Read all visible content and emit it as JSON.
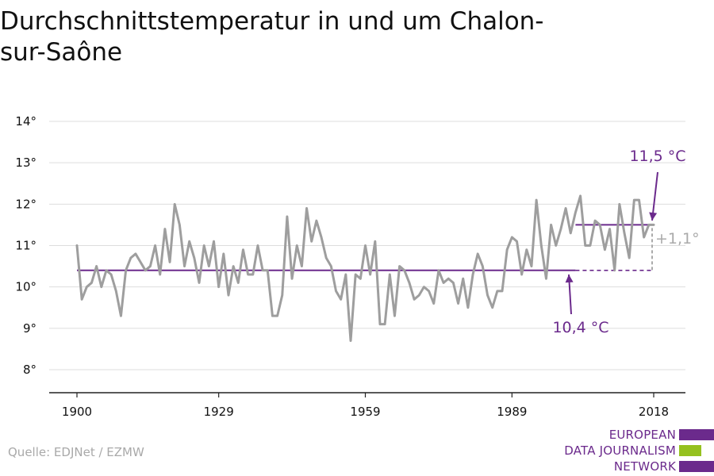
{
  "title": "Durchschnittstemperatur in und um Chalon-sur-Saône",
  "source": "Quelle: EDJNet / EZMW",
  "logo": {
    "lines": [
      "EUROPEAN",
      "DATA JOURNALISM",
      "NETWORK"
    ],
    "bar_colors": [
      "#6b2a8c",
      "#95c11f",
      "#6b2a8c"
    ]
  },
  "colors": {
    "series": "#9e9e9e",
    "accent": "#6b2a8c",
    "grid": "#dddddd",
    "axis": "#222222",
    "difference": "#aaaaaa"
  },
  "chart_data": {
    "type": "line",
    "title": "Durchschnittstemperatur in und um Chalon-sur-Saône",
    "xlabel": "",
    "ylabel": "",
    "xlim": [
      1900,
      2018
    ],
    "ylim": [
      8,
      14
    ],
    "x_ticks": [
      1900,
      1929,
      1959,
      1989,
      2018
    ],
    "y_ticks": [
      8,
      9,
      10,
      11,
      12,
      13,
      14
    ],
    "y_tick_labels": [
      "8°",
      "9°",
      "10°",
      "11°",
      "12°",
      "13°",
      "14°"
    ],
    "grid": true,
    "series": [
      {
        "x": [
          1900,
          1901,
          1902,
          1903,
          1904,
          1905,
          1906,
          1907,
          1908,
          1909,
          1910,
          1911,
          1912,
          1913,
          1914,
          1915,
          1916,
          1917,
          1918,
          1919,
          1920,
          1921,
          1922,
          1923,
          1924,
          1925,
          1926,
          1927,
          1928,
          1929,
          1930,
          1931,
          1932,
          1933,
          1934,
          1935,
          1936,
          1937,
          1938,
          1939,
          1940,
          1941,
          1942,
          1943,
          1944,
          1945,
          1946,
          1947,
          1948,
          1949,
          1950,
          1951,
          1952,
          1953,
          1954,
          1955,
          1956,
          1957,
          1958,
          1959,
          1960,
          1961,
          1962,
          1963,
          1964,
          1965,
          1966,
          1967,
          1968,
          1969,
          1970,
          1971,
          1972,
          1973,
          1974,
          1975,
          1976,
          1977,
          1978,
          1979,
          1980,
          1981,
          1982,
          1983,
          1984,
          1985,
          1986,
          1987,
          1988,
          1989,
          1990,
          1991,
          1992,
          1993,
          1994,
          1995,
          1996,
          1997,
          1998,
          1999,
          2000,
          2001,
          2002,
          2003,
          2004,
          2005,
          2006,
          2007,
          2008,
          2009,
          2010,
          2011,
          2012,
          2013,
          2014,
          2015,
          2016,
          2017,
          2018
        ],
        "values": [
          11.0,
          9.7,
          10.0,
          10.1,
          10.5,
          10.0,
          10.4,
          10.3,
          9.9,
          9.3,
          10.4,
          10.7,
          10.8,
          10.6,
          10.4,
          10.5,
          11.0,
          10.3,
          11.4,
          10.6,
          12.0,
          11.5,
          10.5,
          11.1,
          10.7,
          10.1,
          11.0,
          10.5,
          11.1,
          10.0,
          10.8,
          9.8,
          10.5,
          10.1,
          10.9,
          10.3,
          10.3,
          11.0,
          10.4,
          10.4,
          9.3,
          9.3,
          9.8,
          11.7,
          10.2,
          11.0,
          10.5,
          11.9,
          11.1,
          11.6,
          11.2,
          10.7,
          10.5,
          9.9,
          9.7,
          10.3,
          8.7,
          10.3,
          10.2,
          11.0,
          10.3,
          11.1,
          9.1,
          9.1,
          10.3,
          9.3,
          10.5,
          10.4,
          10.1,
          9.7,
          9.8,
          10.0,
          9.9,
          9.6,
          10.4,
          10.1,
          10.2,
          10.1,
          9.6,
          10.2,
          9.5,
          10.3,
          10.8,
          10.5,
          9.8,
          9.5,
          9.9,
          9.9,
          10.9,
          11.2,
          11.1,
          10.3,
          10.9,
          10.5,
          12.1,
          11.0,
          10.2,
          11.5,
          11.0,
          11.4,
          11.9,
          11.3,
          11.8,
          12.2,
          11.0,
          11.0,
          11.6,
          11.5,
          10.9,
          11.4,
          10.4,
          12.0,
          11.3,
          10.7,
          12.1,
          12.1,
          11.2,
          11.5,
          11.5
        ]
      }
    ],
    "reference_lines": [
      {
        "value": 10.4,
        "from": 1900,
        "to": 2002,
        "label": "10,4 °C"
      },
      {
        "value": 11.5,
        "from": 2002,
        "to": 2018,
        "label": "11,5 °C"
      }
    ],
    "difference_label": "+1,1°"
  }
}
